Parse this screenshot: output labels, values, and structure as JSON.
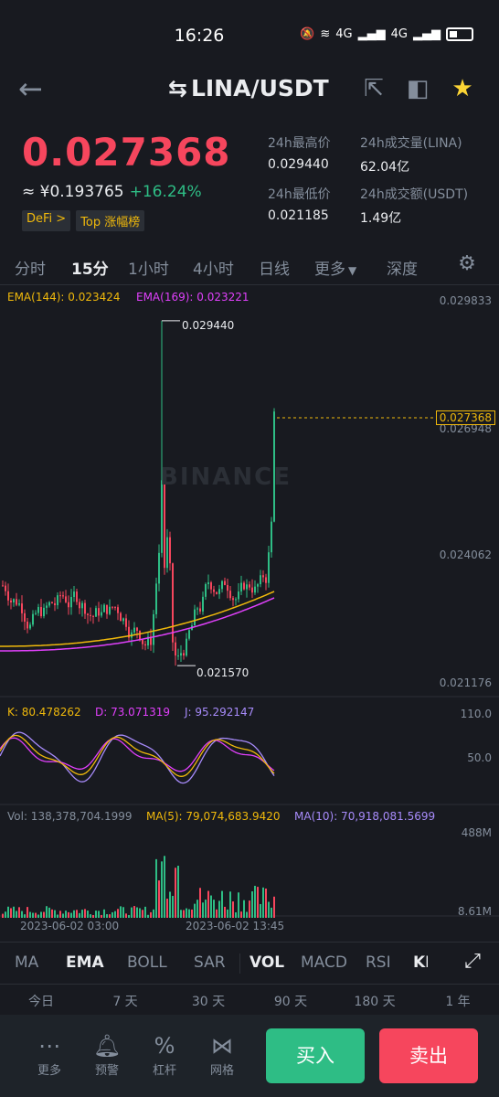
{
  "status": {
    "time": "16:26",
    "signal": "4G",
    "signal2": "4G"
  },
  "header": {
    "title": "LINA/USDT",
    "back_icon": "arrow-left-icon",
    "icons": [
      "external-link-icon",
      "compare-icon",
      "star-icon"
    ]
  },
  "price": {
    "last": "0.027368",
    "fiat": "≈ ¥0.193765",
    "change": "+16.24%",
    "tags": [
      "DeFi >",
      "Top 涨幅榜"
    ]
  },
  "stats": {
    "high_label": "24h最高价",
    "high": "0.029440",
    "vol_label": "24h成交量(LINA)",
    "vol": "62.04亿",
    "low_label": "24h最低价",
    "low": "0.021185",
    "amt_label": "24h成交额(USDT)",
    "amt": "1.49亿"
  },
  "intervals": [
    "分时",
    "15分",
    "1小时",
    "4小时",
    "日线",
    "更多",
    "深度"
  ],
  "active_interval": "15分",
  "chart": {
    "ema144": "EMA(144): 0.023424",
    "ema169": "EMA(169): 0.023221",
    "max_label": "0.029440",
    "min_label": "0.021570",
    "y_top": "0.029833",
    "y_mid": "0.026948",
    "y_last": "0.027368",
    "y_low": "0.024062",
    "y_bottom": "0.021176",
    "watermark": "BINANCE",
    "kdj_k": "K: 80.478262",
    "kdj_d": "D: 73.071319",
    "kdj_j": "J: 95.292147",
    "kdj_top": "110.0",
    "kdj_mid": "50.0",
    "vol": "Vol: 138,378,704.1999",
    "ma5": "MA(5): 79,074,683.9420",
    "ma10": "MA(10): 70,918,081.5699",
    "vol_top": "488M",
    "vol_bottom": "8.61M",
    "date1": "2023-06-02 03:00",
    "date2": "2023-06-02 13:45",
    "colors": {
      "up": "#2ebd85",
      "down": "#f6465d",
      "ema144": "#f0b90b",
      "ema169": "#e040fb"
    }
  },
  "chart_data": {
    "type": "candlestick",
    "series": [
      {
        "name": "EMA(144)",
        "values": []
      },
      {
        "name": "EMA(169)",
        "values": []
      }
    ],
    "ylim": [
      0.021176,
      0.029833
    ],
    "high": 0.02944,
    "low": 0.02157,
    "last": 0.027368
  },
  "indicator_tabs": [
    "MA",
    "EMA",
    "BOLL",
    "SAR",
    "VOL",
    "MACD",
    "RSI",
    "KI"
  ],
  "perf": [
    "今日",
    "7 天",
    "30 天",
    "90 天",
    "180 天",
    "1 年"
  ],
  "bottom": {
    "more": "更多",
    "alert": "预警",
    "margin": "杠杆",
    "grid": "网格",
    "buy": "买入",
    "sell": "卖出"
  }
}
